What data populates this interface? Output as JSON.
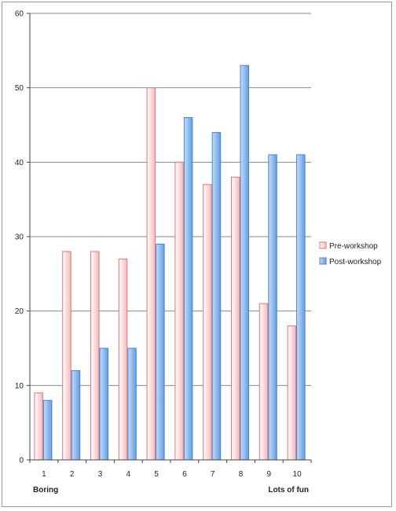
{
  "chart_data": {
    "type": "bar",
    "categories": [
      "1",
      "2",
      "3",
      "4",
      "5",
      "6",
      "7",
      "8",
      "9",
      "10"
    ],
    "series": [
      {
        "name": "Pre-workshop",
        "values": [
          9,
          28,
          28,
          27,
          50,
          40,
          37,
          38,
          21,
          18
        ]
      },
      {
        "name": "Post-workshop",
        "values": [
          8,
          12,
          15,
          15,
          29,
          46,
          44,
          53,
          41,
          41
        ]
      }
    ],
    "ylim": [
      0,
      60
    ],
    "yticks": [
      0,
      10,
      20,
      30,
      40,
      50,
      60
    ],
    "grid": true,
    "legend": "right",
    "x_end_labels": {
      "left": "Boring",
      "right": "Lots of fun"
    },
    "colors": {
      "pre_fill_top": "#ffffff",
      "pre_fill_bottom": "#f7b8b8",
      "pre_stroke": "#e0767a",
      "post_fill_top": "#c6dcf8",
      "post_fill_bottom": "#5f9ee6",
      "post_stroke": "#4a86cf"
    }
  }
}
